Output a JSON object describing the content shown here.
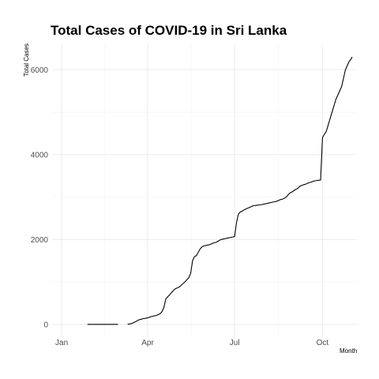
{
  "chart_data": {
    "type": "line",
    "title": "Total Cases of COVID-19 in Sri Lanka",
    "xlabel": "Month",
    "ylabel": "Total Cases",
    "x_ticks": [
      {
        "label": "Jan",
        "day": 1
      },
      {
        "label": "Apr",
        "day": 91
      },
      {
        "label": "Jul",
        "day": 182
      },
      {
        "label": "Oct",
        "day": 274
      }
    ],
    "y_ticks": [
      0,
      2000,
      4000,
      6000
    ],
    "xlim": [
      -9,
      310
    ],
    "ylim": [
      -300,
      6600
    ],
    "grid": true,
    "series": [
      {
        "segments": [
          {
            "x": [
              28,
              60
            ],
            "y": [
              1,
              1
            ]
          },
          {
            "x": [
              70,
              72,
              74,
              76,
              78,
              80,
              82,
              84,
              86,
              88,
              90,
              92,
              94,
              96,
              98,
              100,
              102,
              104,
              106,
              108,
              110,
              112,
              114,
              116,
              118,
              120,
              122,
              124,
              126,
              128,
              130,
              132,
              134,
              136,
              138,
              140,
              142,
              144,
              146,
              148,
              150,
              152,
              154,
              156,
              158,
              160,
              162,
              164,
              166,
              168,
              170,
              172,
              174,
              176,
              178,
              180,
              182,
              184,
              186,
              188,
              190,
              192,
              194,
              196,
              198,
              200,
              202,
              204,
              206,
              208,
              210,
              212,
              214,
              216,
              218,
              220,
              222,
              224,
              226,
              228,
              230,
              232,
              234,
              236,
              238,
              240,
              242,
              244,
              246,
              248,
              250,
              252,
              254,
              256,
              258,
              260,
              262,
              264,
              266,
              268,
              270,
              272,
              274,
              276,
              278,
              280,
              282,
              284,
              286,
              288,
              290,
              292,
              294,
              296,
              298,
              300,
              302,
              304,
              305
            ],
            "y": [
              1,
              10,
              20,
              40,
              60,
              85,
              110,
              120,
              135,
              140,
              150,
              160,
              180,
              190,
              200,
              210,
              230,
              250,
              300,
              400,
              600,
              650,
              700,
              750,
              800,
              840,
              860,
              880,
              920,
              960,
              1000,
              1050,
              1100,
              1200,
              1500,
              1600,
              1620,
              1700,
              1780,
              1830,
              1850,
              1860,
              1870,
              1880,
              1900,
              1920,
              1930,
              1950,
              1980,
              2000,
              2010,
              2020,
              2030,
              2040,
              2050,
              2060,
              2070,
              2400,
              2600,
              2650,
              2670,
              2700,
              2720,
              2740,
              2760,
              2780,
              2800,
              2800,
              2810,
              2815,
              2820,
              2830,
              2840,
              2850,
              2860,
              2870,
              2880,
              2890,
              2900,
              2920,
              2940,
              2950,
              2970,
              3000,
              3050,
              3100,
              3120,
              3150,
              3180,
              3200,
              3250,
              3270,
              3290,
              3300,
              3320,
              3340,
              3350,
              3370,
              3380,
              3390,
              3395,
              3400,
              4400,
              4480,
              4550,
              4700,
              4850,
              5000,
              5150,
              5300,
              5400,
              5500,
              5600,
              5800,
              6000,
              6100,
              6200,
              6250,
              6300
            ]
          }
        ]
      }
    ]
  }
}
